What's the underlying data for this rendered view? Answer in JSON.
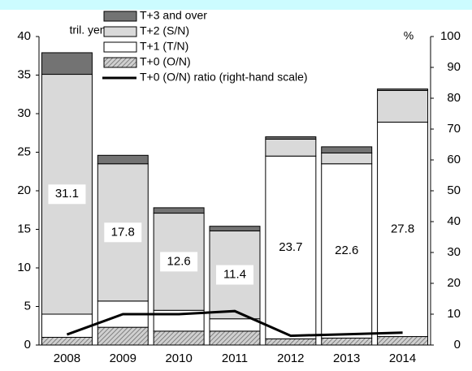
{
  "chart_data": {
    "type": "bar",
    "stacked": true,
    "y_label": "tril. yen",
    "y2_label": "%",
    "categories": [
      "2008",
      "2009",
      "2010",
      "2011",
      "2012",
      "2013",
      "2014"
    ],
    "series": [
      {
        "name": "T+0 (O/N)",
        "color": "#b0b0b0",
        "pattern": "hatch",
        "values": [
          1.0,
          2.3,
          1.8,
          1.8,
          0.8,
          0.9,
          1.1
        ]
      },
      {
        "name": "T+1 (T/N)",
        "color": "#ffffff",
        "values": [
          3.0,
          3.4,
          2.7,
          1.6,
          23.7,
          22.6,
          27.8
        ]
      },
      {
        "name": "T+2 (S/N)",
        "color": "#d9d9d9",
        "values": [
          31.1,
          17.8,
          12.6,
          11.4,
          2.2,
          1.4,
          4.1
        ]
      },
      {
        "name": "T+3 and over",
        "color": "#737373",
        "values": [
          2.8,
          1.1,
          0.7,
          0.6,
          0.3,
          0.8,
          0.2
        ]
      },
      {
        "name": "T+0 (O/N) ratio (right-hand scale)",
        "type": "line",
        "axis": "y2",
        "color": "#000000",
        "values": [
          3.4,
          10,
          10,
          11,
          3,
          3.5,
          4
        ]
      }
    ],
    "legend_order": [
      3,
      2,
      1,
      0,
      4
    ],
    "ylim": [
      0,
      40
    ],
    "yticks": [
      0,
      5,
      10,
      15,
      20,
      25,
      30,
      35,
      40
    ],
    "y2lim": [
      0,
      100
    ],
    "y2ticks": [
      0,
      10,
      20,
      30,
      40,
      50,
      60,
      70,
      80,
      90,
      100
    ]
  }
}
